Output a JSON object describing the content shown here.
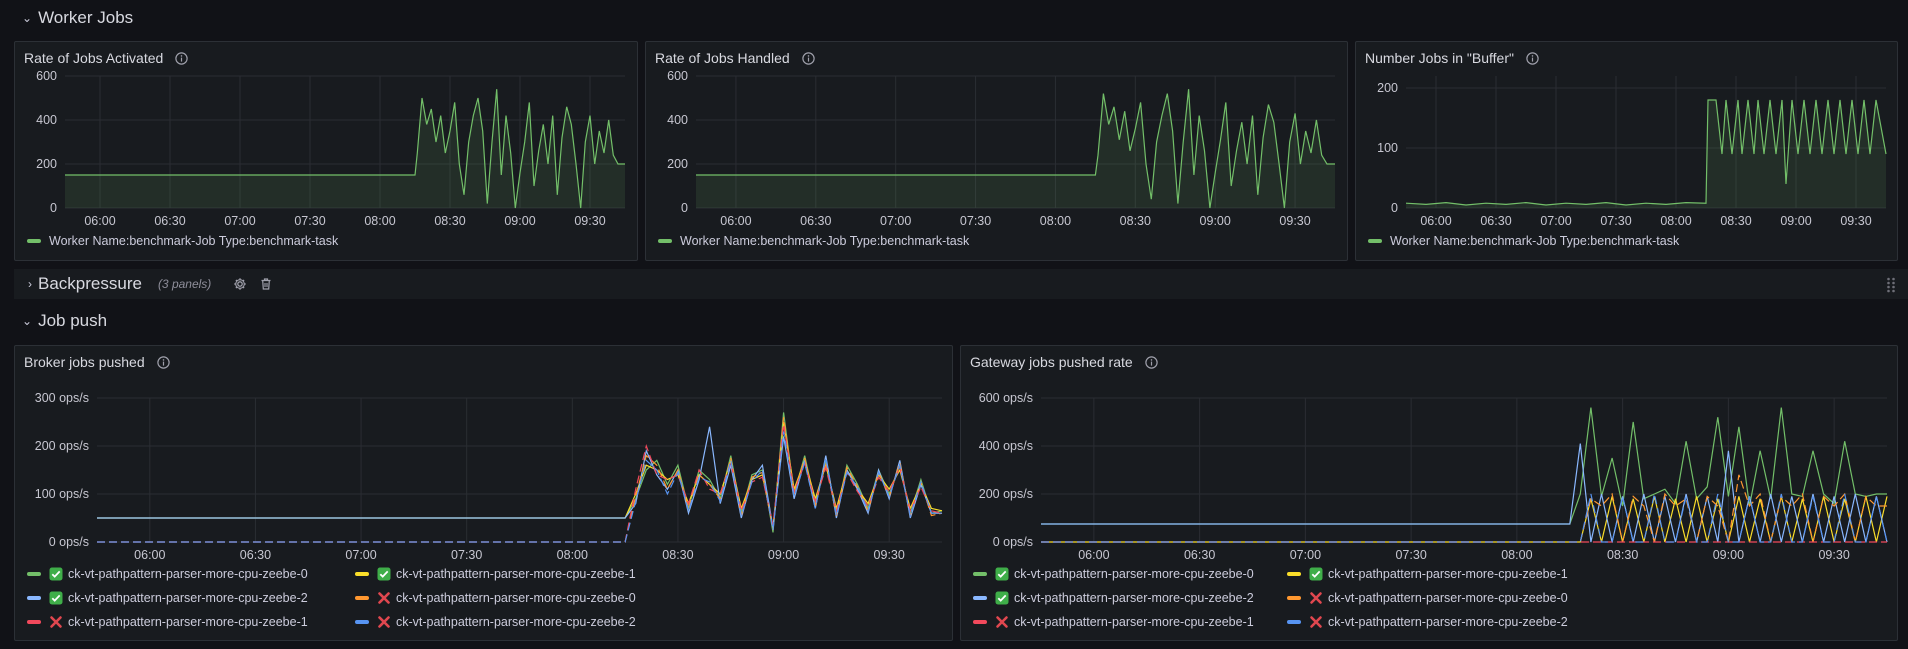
{
  "rows": {
    "worker_jobs": {
      "title": "Worker Jobs"
    },
    "backpressure": {
      "title": "Backpressure",
      "subtitle": "(3 panels)"
    },
    "job_push": {
      "title": "Job push"
    }
  },
  "icons": {
    "expanded": "chevron-down-icon",
    "collapsed": "chevron-right-icon",
    "info": "info-circle-icon",
    "settings": "gear-icon",
    "delete": "trash-icon",
    "status_ok": "check-box-icon",
    "status_fail": "cross-icon"
  },
  "colors": {
    "green": "#73bf69",
    "yellow": "#fade2a",
    "blue": "#8ab8ff",
    "orange": "#ff9830",
    "red": "#f2495c",
    "darkblue": "#5794f2"
  },
  "panels": {
    "activated": {
      "title": "Rate of Jobs Activated",
      "legend": [
        "Worker Name:benchmark-Job Type:benchmark-task"
      ]
    },
    "handled": {
      "title": "Rate of Jobs Handled",
      "legend": [
        "Worker Name:benchmark-Job Type:benchmark-task"
      ]
    },
    "buffer": {
      "title": "Number Jobs in \"Buffer\"",
      "legend": [
        "Worker Name:benchmark-Job Type:benchmark-task"
      ]
    },
    "broker": {
      "title": "Broker jobs pushed",
      "legend": [
        "ck-vt-pathpattern-parser-more-cpu-zeebe-0",
        "ck-vt-pathpattern-parser-more-cpu-zeebe-1",
        "ck-vt-pathpattern-parser-more-cpu-zeebe-2",
        "ck-vt-pathpattern-parser-more-cpu-zeebe-0",
        "ck-vt-pathpattern-parser-more-cpu-zeebe-1",
        "ck-vt-pathpattern-parser-more-cpu-zeebe-2"
      ]
    },
    "gateway": {
      "title": "Gateway jobs pushed rate",
      "legend": [
        "ck-vt-pathpattern-parser-more-cpu-zeebe-0",
        "ck-vt-pathpattern-parser-more-cpu-zeebe-1",
        "ck-vt-pathpattern-parser-more-cpu-zeebe-2",
        "ck-vt-pathpattern-parser-more-cpu-zeebe-0",
        "ck-vt-pathpattern-parser-more-cpu-zeebe-1",
        "ck-vt-pathpattern-parser-more-cpu-zeebe-2"
      ]
    }
  },
  "chart_data": [
    {
      "id": "activated",
      "type": "area",
      "title": "Rate of Jobs Activated",
      "x_ticks": [
        "06:00",
        "06:30",
        "07:00",
        "07:30",
        "08:00",
        "08:30",
        "09:00",
        "09:30"
      ],
      "y_ticks": [
        "0",
        "200",
        "400",
        "600"
      ],
      "ylim": [
        0,
        600
      ],
      "xlim_minutes": [
        0,
        240
      ],
      "series": [
        {
          "name": "Worker Name:benchmark-Job Type:benchmark-task",
          "color": "#73bf69",
          "x": [
            0,
            150,
            151,
            153,
            155,
            157,
            159,
            161,
            163,
            165,
            167,
            169,
            171,
            173,
            175,
            177,
            179,
            181,
            183,
            185,
            187,
            189,
            191,
            193,
            195,
            197,
            199,
            201,
            203,
            205,
            207,
            209,
            211,
            213,
            215,
            217,
            219,
            221,
            223,
            225,
            227,
            229,
            231,
            233,
            235,
            237,
            240
          ],
          "y": [
            150,
            150,
            250,
            500,
            380,
            450,
            300,
            420,
            250,
            350,
            480,
            200,
            60,
            300,
            420,
            500,
            350,
            20,
            300,
            540,
            150,
            420,
            250,
            0,
            160,
            300,
            480,
            100,
            260,
            380,
            200,
            420,
            60,
            320,
            460,
            380,
            200,
            0,
            300,
            420,
            200,
            350,
            250,
            400,
            240,
            200,
            200
          ]
        }
      ]
    },
    {
      "id": "handled",
      "type": "area",
      "title": "Rate of Jobs Handled",
      "x_ticks": [
        "06:00",
        "06:30",
        "07:00",
        "07:30",
        "08:00",
        "08:30",
        "09:00",
        "09:30"
      ],
      "y_ticks": [
        "0",
        "200",
        "400",
        "600"
      ],
      "ylim": [
        0,
        600
      ],
      "xlim_minutes": [
        0,
        240
      ],
      "series": [
        {
          "name": "Worker Name:benchmark-Job Type:benchmark-task",
          "color": "#73bf69",
          "x": [
            0,
            150,
            151,
            153,
            155,
            157,
            159,
            161,
            163,
            165,
            167,
            169,
            171,
            173,
            175,
            177,
            179,
            181,
            183,
            185,
            187,
            189,
            191,
            193,
            195,
            197,
            199,
            201,
            203,
            205,
            207,
            209,
            211,
            213,
            215,
            217,
            219,
            221,
            223,
            225,
            227,
            229,
            231,
            233,
            235,
            237,
            240
          ],
          "y": [
            150,
            150,
            240,
            520,
            380,
            460,
            310,
            440,
            260,
            360,
            480,
            200,
            40,
            300,
            420,
            520,
            350,
            20,
            300,
            540,
            150,
            420,
            260,
            0,
            160,
            310,
            480,
            100,
            260,
            390,
            200,
            420,
            60,
            320,
            470,
            390,
            200,
            0,
            300,
            430,
            200,
            350,
            250,
            400,
            240,
            200,
            200
          ]
        }
      ]
    },
    {
      "id": "buffer",
      "type": "area",
      "title": "Number Jobs in \"Buffer\"",
      "x_ticks": [
        "06:00",
        "06:30",
        "07:00",
        "07:30",
        "08:00",
        "08:30",
        "09:00",
        "09:30"
      ],
      "y_ticks": [
        "0",
        "100",
        "200"
      ],
      "ylim": [
        0,
        220
      ],
      "xlim_minutes": [
        0,
        240
      ],
      "series": [
        {
          "name": "Worker Name:benchmark-Job Type:benchmark-task",
          "color": "#73bf69",
          "x": [
            0,
            10,
            20,
            30,
            40,
            50,
            60,
            70,
            80,
            90,
            100,
            110,
            120,
            130,
            140,
            150,
            151,
            155,
            158,
            160,
            163,
            166,
            168,
            171,
            174,
            176,
            179,
            182,
            185,
            188,
            190,
            193,
            196,
            199,
            202,
            205,
            208,
            211,
            214,
            217,
            220,
            223,
            226,
            229,
            232,
            235,
            240
          ],
          "y": [
            8,
            6,
            9,
            5,
            8,
            6,
            9,
            5,
            8,
            6,
            9,
            5,
            8,
            6,
            9,
            8,
            180,
            180,
            90,
            180,
            90,
            180,
            90,
            180,
            90,
            180,
            90,
            180,
            90,
            180,
            40,
            180,
            90,
            180,
            90,
            180,
            90,
            180,
            90,
            180,
            90,
            180,
            90,
            180,
            90,
            180,
            90
          ]
        }
      ]
    },
    {
      "id": "broker",
      "type": "line",
      "title": "Broker jobs pushed",
      "x_ticks": [
        "06:00",
        "06:30",
        "07:00",
        "07:30",
        "08:00",
        "08:30",
        "09:00",
        "09:30"
      ],
      "y_ticks": [
        "0 ops/s",
        "100 ops/s",
        "200 ops/s",
        "300 ops/s"
      ],
      "ylim": [
        0,
        300
      ],
      "xlim_minutes": [
        0,
        240
      ],
      "x": [
        0,
        150,
        153,
        156,
        159,
        162,
        165,
        168,
        171,
        174,
        177,
        180,
        183,
        186,
        189,
        192,
        195,
        198,
        201,
        204,
        207,
        210,
        213,
        216,
        219,
        222,
        225,
        228,
        231,
        234,
        237,
        240
      ],
      "series": [
        {
          "name": "ck-vt-pathpattern-parser-more-cpu-zeebe-0",
          "status": "ok",
          "color": "#73bf69",
          "values": [
            50,
            50,
            90,
            150,
            170,
            120,
            160,
            70,
            150,
            130,
            90,
            180,
            60,
            140,
            150,
            20,
            270,
            100,
            180,
            80,
            170,
            60,
            160,
            120,
            70,
            150,
            100,
            160,
            60,
            130,
            60,
            65
          ]
        },
        {
          "name": "ck-vt-pathpattern-parser-more-cpu-zeebe-1",
          "status": "ok",
          "color": "#fade2a",
          "values": [
            50,
            50,
            100,
            160,
            150,
            130,
            140,
            80,
            140,
            120,
            100,
            170,
            70,
            130,
            140,
            30,
            250,
            110,
            170,
            90,
            160,
            70,
            150,
            110,
            80,
            140,
            110,
            150,
            70,
            120,
            70,
            65
          ]
        },
        {
          "name": "ck-vt-pathpattern-parser-more-cpu-zeebe-2",
          "status": "ok",
          "color": "#8ab8ff",
          "values": [
            50,
            50,
            80,
            190,
            140,
            110,
            150,
            60,
            130,
            240,
            80,
            160,
            50,
            130,
            160,
            30,
            220,
            90,
            170,
            70,
            180,
            50,
            150,
            110,
            60,
            150,
            90,
            170,
            50,
            120,
            60,
            60
          ]
        },
        {
          "name": "ck-vt-pathpattern-parser-more-cpu-zeebe-0",
          "status": "fail",
          "color": "#ff9830",
          "dashed": true,
          "values": [
            0,
            0,
            95,
            180,
            160,
            110,
            150,
            70,
            140,
            120,
            90,
            175,
            55,
            135,
            145,
            25,
            260,
            100,
            175,
            75,
            165,
            55,
            155,
            115,
            65,
            145,
            95,
            165,
            55,
            125,
            55,
            60
          ]
        },
        {
          "name": "ck-vt-pathpattern-parser-more-cpu-zeebe-1",
          "status": "fail",
          "color": "#f2495c",
          "dashed": true,
          "values": [
            0,
            0,
            110,
            200,
            140,
            130,
            140,
            80,
            150,
            110,
            100,
            165,
            65,
            125,
            135,
            35,
            245,
            105,
            165,
            85,
            155,
            65,
            145,
            105,
            75,
            135,
            105,
            155,
            65,
            115,
            65,
            60
          ]
        },
        {
          "name": "ck-vt-pathpattern-parser-more-cpu-zeebe-2",
          "status": "fail",
          "color": "#5794f2",
          "dashed": true,
          "values": [
            0,
            0,
            85,
            170,
            150,
            100,
            145,
            65,
            135,
            125,
            85,
            170,
            55,
            125,
            150,
            25,
            230,
            95,
            165,
            70,
            175,
            55,
            145,
            115,
            65,
            145,
            95,
            160,
            55,
            125,
            60,
            60
          ]
        }
      ]
    },
    {
      "id": "gateway",
      "type": "line",
      "title": "Gateway jobs pushed rate",
      "x_ticks": [
        "06:00",
        "06:30",
        "07:00",
        "07:30",
        "08:00",
        "08:30",
        "09:00",
        "09:30"
      ],
      "y_ticks": [
        "0 ops/s",
        "200 ops/s",
        "400 ops/s",
        "600 ops/s"
      ],
      "ylim": [
        0,
        600
      ],
      "xlim_minutes": [
        0,
        240
      ],
      "x": [
        0,
        150,
        153,
        156,
        159,
        162,
        165,
        168,
        171,
        174,
        177,
        180,
        183,
        186,
        189,
        192,
        195,
        198,
        201,
        204,
        207,
        210,
        213,
        216,
        219,
        222,
        225,
        228,
        231,
        234,
        237,
        240
      ],
      "series": [
        {
          "name": "ck-vt-pathpattern-parser-more-cpu-zeebe-0",
          "status": "ok",
          "color": "#73bf69",
          "values": [
            75,
            75,
            200,
            560,
            190,
            350,
            150,
            500,
            180,
            200,
            220,
            160,
            420,
            180,
            230,
            520,
            190,
            480,
            150,
            380,
            180,
            560,
            200,
            190,
            380,
            200,
            160,
            420,
            200,
            190,
            200,
            200
          ]
        },
        {
          "name": "ck-vt-pathpattern-parser-more-cpu-zeebe-1",
          "status": "ok",
          "color": "#fade2a",
          "values": [
            0,
            0,
            0,
            180,
            0,
            190,
            0,
            180,
            0,
            190,
            0,
            180,
            0,
            190,
            0,
            180,
            0,
            190,
            0,
            180,
            0,
            190,
            0,
            180,
            0,
            190,
            0,
            180,
            0,
            190,
            0,
            190
          ]
        },
        {
          "name": "ck-vt-pathpattern-parser-more-cpu-zeebe-2",
          "status": "ok",
          "color": "#8ab8ff",
          "values": [
            75,
            75,
            410,
            0,
            200,
            0,
            190,
            0,
            200,
            0,
            190,
            0,
            200,
            0,
            190,
            0,
            380,
            0,
            190,
            0,
            200,
            0,
            190,
            0,
            200,
            0,
            190,
            0,
            200,
            0,
            190,
            0
          ]
        },
        {
          "name": "ck-vt-pathpattern-parser-more-cpu-zeebe-0",
          "status": "fail",
          "color": "#ff9830",
          "dashed": true,
          "values": [
            0,
            0,
            0,
            180,
            150,
            200,
            0,
            190,
            150,
            0,
            200,
            150,
            180,
            0,
            190,
            150,
            0,
            280,
            150,
            200,
            0,
            190,
            150,
            200,
            0,
            190,
            150,
            200,
            0,
            190,
            150,
            150
          ]
        },
        {
          "name": "ck-vt-pathpattern-parser-more-cpu-zeebe-1",
          "status": "fail",
          "color": "#f2495c",
          "dashed": true,
          "values": [
            0,
            0,
            0,
            0,
            0,
            0,
            0,
            0,
            0,
            0,
            0,
            0,
            0,
            0,
            0,
            0,
            0,
            0,
            0,
            0,
            0,
            0,
            0,
            0,
            0,
            0,
            0,
            0,
            0,
            0,
            0,
            0
          ]
        },
        {
          "name": "ck-vt-pathpattern-parser-more-cpu-zeebe-2",
          "status": "fail",
          "color": "#5794f2",
          "dashed": true,
          "values": [
            0,
            0,
            0,
            200,
            0,
            0,
            190,
            0,
            0,
            200,
            0,
            0,
            190,
            0,
            0,
            200,
            0,
            0,
            190,
            0,
            0,
            200,
            0,
            0,
            190,
            0,
            0,
            200,
            0,
            0,
            190,
            0
          ]
        }
      ]
    }
  ]
}
